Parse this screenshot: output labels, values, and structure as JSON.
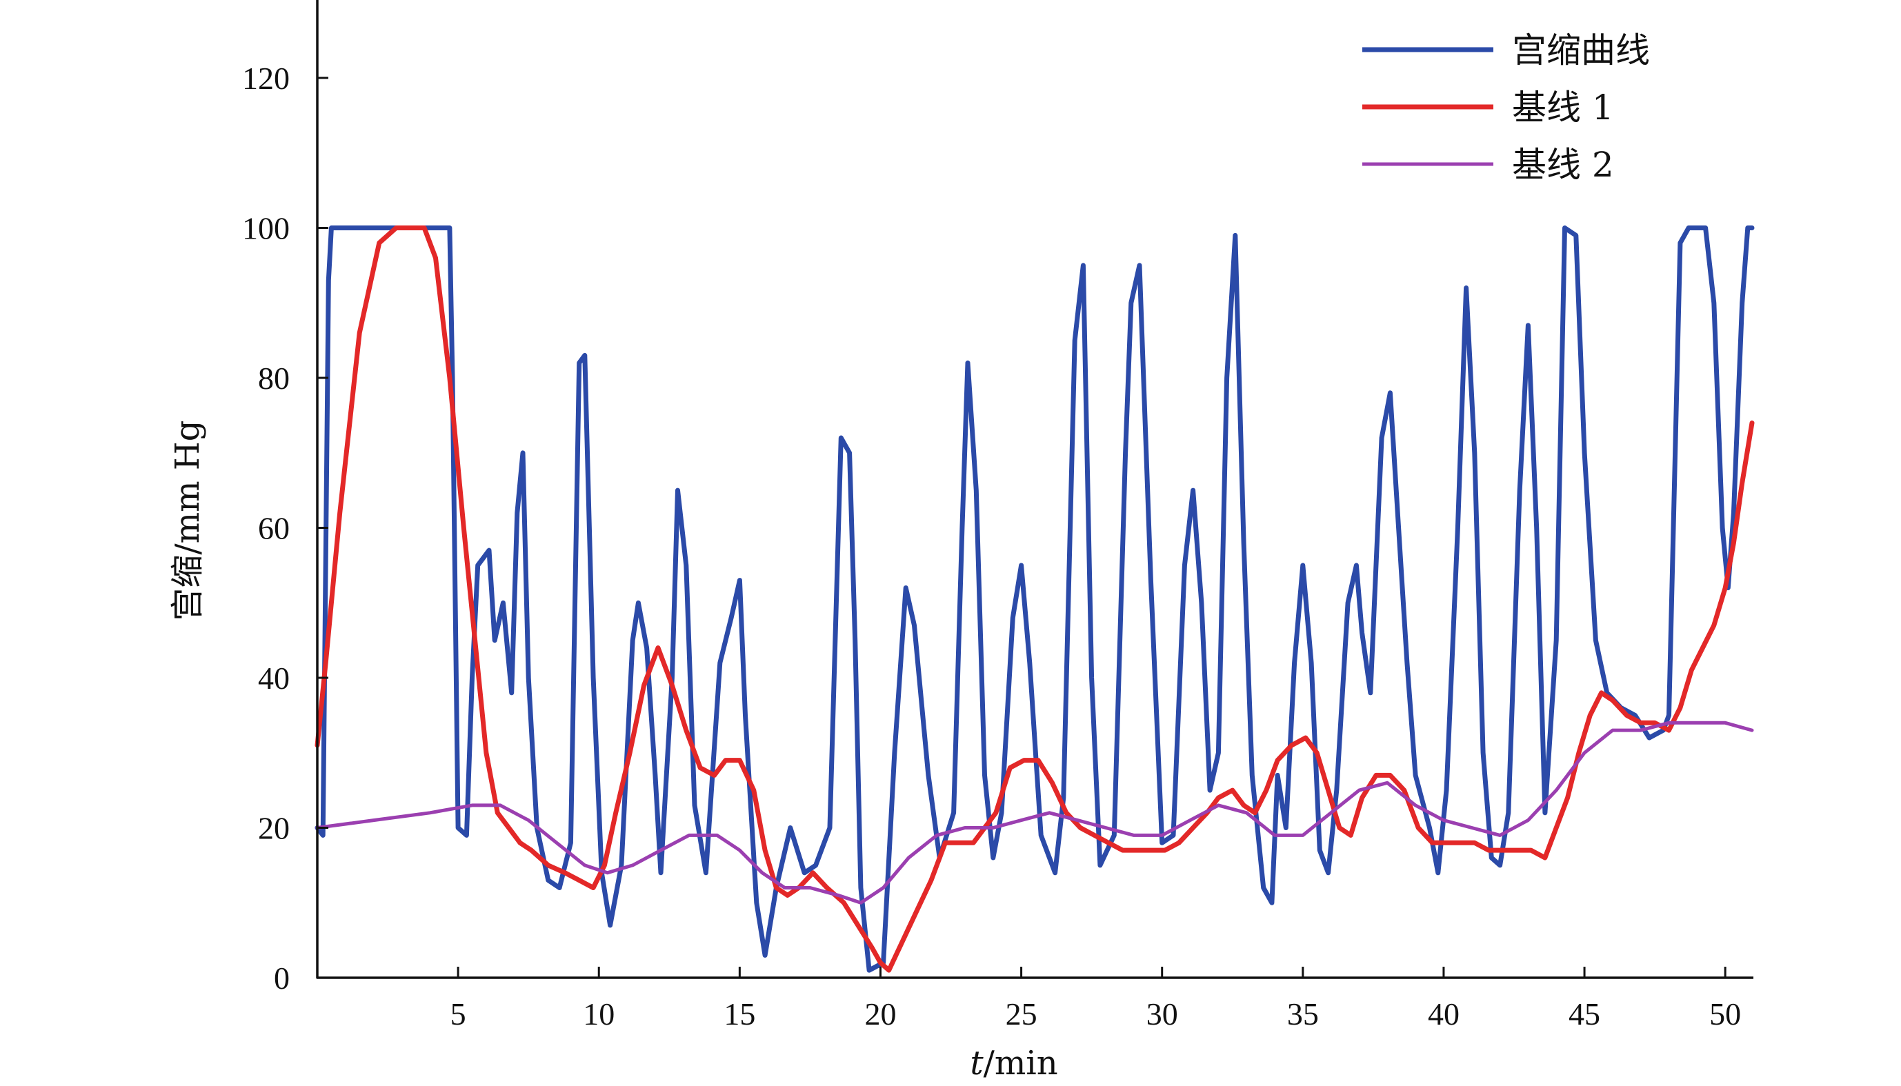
{
  "chart_data": {
    "type": "line",
    "title": "",
    "xlabel_italic": "t",
    "xlabel_unit": "/min",
    "ylabel": "宫缩/mm Hg",
    "xlim": [
      0,
      51
    ],
    "ylim": [
      0,
      130
    ],
    "xticks": [
      5,
      10,
      15,
      20,
      25,
      30,
      35,
      40,
      45,
      50
    ],
    "yticks": [
      0,
      20,
      40,
      60,
      80,
      100,
      120
    ],
    "grid": false,
    "legend_position": "top-right",
    "series": [
      {
        "name": "宫缩曲线",
        "color": "#2b4aa8",
        "points": [
          [
            0,
            20
          ],
          [
            0.2,
            19
          ],
          [
            0.4,
            93
          ],
          [
            0.5,
            100
          ],
          [
            1.5,
            100
          ],
          [
            3,
            100
          ],
          [
            4.6,
            100
          ],
          [
            4.7,
            100
          ],
          [
            4.8,
            80
          ],
          [
            5.0,
            20
          ],
          [
            5.3,
            19
          ],
          [
            5.5,
            40
          ],
          [
            5.7,
            55
          ],
          [
            6.1,
            57
          ],
          [
            6.3,
            45
          ],
          [
            6.6,
            50
          ],
          [
            6.9,
            38
          ],
          [
            7.1,
            62
          ],
          [
            7.3,
            70
          ],
          [
            7.5,
            40
          ],
          [
            7.8,
            20
          ],
          [
            8.2,
            13
          ],
          [
            8.6,
            12
          ],
          [
            9.0,
            18
          ],
          [
            9.3,
            82
          ],
          [
            9.5,
            83
          ],
          [
            9.8,
            40
          ],
          [
            10.1,
            14
          ],
          [
            10.4,
            7
          ],
          [
            10.8,
            15
          ],
          [
            11.2,
            45
          ],
          [
            11.4,
            50
          ],
          [
            11.7,
            44
          ],
          [
            12.0,
            27
          ],
          [
            12.2,
            14
          ],
          [
            12.6,
            40
          ],
          [
            12.8,
            65
          ],
          [
            13.1,
            55
          ],
          [
            13.4,
            23
          ],
          [
            13.8,
            14
          ],
          [
            14.3,
            42
          ],
          [
            14.7,
            48
          ],
          [
            15.0,
            53
          ],
          [
            15.2,
            35
          ],
          [
            15.6,
            10
          ],
          [
            15.9,
            3
          ],
          [
            16.3,
            12
          ],
          [
            16.8,
            20
          ],
          [
            17.3,
            14
          ],
          [
            17.7,
            15
          ],
          [
            18.2,
            20
          ],
          [
            18.6,
            72
          ],
          [
            18.9,
            70
          ],
          [
            19.1,
            45
          ],
          [
            19.3,
            12
          ],
          [
            19.6,
            1
          ],
          [
            20.1,
            2
          ],
          [
            20.5,
            30
          ],
          [
            20.9,
            52
          ],
          [
            21.2,
            47
          ],
          [
            21.7,
            27
          ],
          [
            22.1,
            16
          ],
          [
            22.6,
            22
          ],
          [
            22.9,
            60
          ],
          [
            23.1,
            82
          ],
          [
            23.4,
            65
          ],
          [
            23.7,
            27
          ],
          [
            24.0,
            16
          ],
          [
            24.3,
            22
          ],
          [
            24.7,
            48
          ],
          [
            25.0,
            55
          ],
          [
            25.3,
            42
          ],
          [
            25.7,
            19
          ],
          [
            26.2,
            14
          ],
          [
            26.5,
            24
          ],
          [
            26.9,
            85
          ],
          [
            27.2,
            95
          ],
          [
            27.5,
            40
          ],
          [
            27.8,
            15
          ],
          [
            28.3,
            19
          ],
          [
            28.7,
            70
          ],
          [
            28.9,
            90
          ],
          [
            29.2,
            95
          ],
          [
            29.6,
            53
          ],
          [
            30.0,
            18
          ],
          [
            30.4,
            19
          ],
          [
            30.8,
            55
          ],
          [
            31.1,
            65
          ],
          [
            31.4,
            50
          ],
          [
            31.7,
            25
          ],
          [
            32.0,
            30
          ],
          [
            32.3,
            80
          ],
          [
            32.6,
            99
          ],
          [
            32.9,
            58
          ],
          [
            33.2,
            27
          ],
          [
            33.6,
            12
          ],
          [
            33.9,
            10
          ],
          [
            34.1,
            27
          ],
          [
            34.4,
            20
          ],
          [
            34.7,
            42
          ],
          [
            35.0,
            55
          ],
          [
            35.3,
            42
          ],
          [
            35.6,
            17
          ],
          [
            35.9,
            14
          ],
          [
            36.2,
            25
          ],
          [
            36.6,
            50
          ],
          [
            36.9,
            55
          ],
          [
            37.1,
            46
          ],
          [
            37.4,
            38
          ],
          [
            37.8,
            72
          ],
          [
            38.1,
            78
          ],
          [
            38.4,
            60
          ],
          [
            38.7,
            42
          ],
          [
            39.0,
            27
          ],
          [
            39.5,
            20
          ],
          [
            39.8,
            14
          ],
          [
            40.1,
            25
          ],
          [
            40.5,
            60
          ],
          [
            40.8,
            92
          ],
          [
            41.1,
            70
          ],
          [
            41.4,
            30
          ],
          [
            41.7,
            16
          ],
          [
            42.0,
            15
          ],
          [
            42.3,
            22
          ],
          [
            42.7,
            65
          ],
          [
            43.0,
            87
          ],
          [
            43.3,
            60
          ],
          [
            43.6,
            22
          ],
          [
            44.0,
            45
          ],
          [
            44.3,
            100
          ],
          [
            44.7,
            99
          ],
          [
            45.0,
            70
          ],
          [
            45.4,
            45
          ],
          [
            45.8,
            38
          ],
          [
            46.3,
            36
          ],
          [
            46.8,
            35
          ],
          [
            47.3,
            32
          ],
          [
            47.8,
            33
          ],
          [
            48.0,
            35
          ],
          [
            48.4,
            98
          ],
          [
            48.7,
            100
          ],
          [
            49.3,
            100
          ],
          [
            49.6,
            90
          ],
          [
            49.9,
            60
          ],
          [
            50.1,
            52
          ],
          [
            50.3,
            62
          ],
          [
            50.6,
            90
          ],
          [
            50.8,
            100
          ],
          [
            50.95,
            100
          ]
        ]
      },
      {
        "name": "基线 1",
        "color": "#e32828",
        "points": [
          [
            0,
            31
          ],
          [
            0.3,
            42
          ],
          [
            0.8,
            62
          ],
          [
            1.5,
            86
          ],
          [
            2.2,
            98
          ],
          [
            2.8,
            100
          ],
          [
            3.8,
            100
          ],
          [
            4.2,
            96
          ],
          [
            4.7,
            80
          ],
          [
            5.2,
            60
          ],
          [
            5.6,
            45
          ],
          [
            6.0,
            30
          ],
          [
            6.4,
            22
          ],
          [
            6.8,
            20
          ],
          [
            7.2,
            18
          ],
          [
            7.6,
            17
          ],
          [
            8.2,
            15
          ],
          [
            8.8,
            14
          ],
          [
            9.3,
            13
          ],
          [
            9.8,
            12
          ],
          [
            10.2,
            15
          ],
          [
            10.6,
            22
          ],
          [
            11.1,
            30
          ],
          [
            11.6,
            39
          ],
          [
            12.1,
            44
          ],
          [
            12.6,
            39
          ],
          [
            13.1,
            33
          ],
          [
            13.6,
            28
          ],
          [
            14.1,
            27
          ],
          [
            14.5,
            29
          ],
          [
            15.0,
            29
          ],
          [
            15.5,
            25
          ],
          [
            15.9,
            17
          ],
          [
            16.3,
            12
          ],
          [
            16.7,
            11
          ],
          [
            17.1,
            12
          ],
          [
            17.6,
            14
          ],
          [
            18.1,
            12
          ],
          [
            18.7,
            10
          ],
          [
            19.2,
            7
          ],
          [
            19.7,
            4
          ],
          [
            20.0,
            2
          ],
          [
            20.3,
            1
          ],
          [
            20.8,
            5
          ],
          [
            21.3,
            9
          ],
          [
            21.8,
            13
          ],
          [
            22.3,
            18
          ],
          [
            22.8,
            18
          ],
          [
            23.3,
            18
          ],
          [
            23.7,
            20
          ],
          [
            24.1,
            22
          ],
          [
            24.6,
            28
          ],
          [
            25.1,
            29
          ],
          [
            25.6,
            29
          ],
          [
            26.1,
            26
          ],
          [
            26.6,
            22
          ],
          [
            27.1,
            20
          ],
          [
            27.6,
            19
          ],
          [
            28.1,
            18
          ],
          [
            28.6,
            17
          ],
          [
            29.1,
            17
          ],
          [
            29.6,
            17
          ],
          [
            30.1,
            17
          ],
          [
            30.6,
            18
          ],
          [
            31.1,
            20
          ],
          [
            31.6,
            22
          ],
          [
            32.0,
            24
          ],
          [
            32.5,
            25
          ],
          [
            32.9,
            23
          ],
          [
            33.3,
            22
          ],
          [
            33.7,
            25
          ],
          [
            34.1,
            29
          ],
          [
            34.6,
            31
          ],
          [
            35.1,
            32
          ],
          [
            35.5,
            30
          ],
          [
            35.9,
            25
          ],
          [
            36.3,
            20
          ],
          [
            36.7,
            19
          ],
          [
            37.1,
            24
          ],
          [
            37.6,
            27
          ],
          [
            38.1,
            27
          ],
          [
            38.6,
            25
          ],
          [
            39.1,
            20
          ],
          [
            39.6,
            18
          ],
          [
            40.1,
            18
          ],
          [
            40.6,
            18
          ],
          [
            41.1,
            18
          ],
          [
            41.6,
            17
          ],
          [
            42.1,
            17
          ],
          [
            42.6,
            17
          ],
          [
            43.1,
            17
          ],
          [
            43.6,
            16
          ],
          [
            44.0,
            20
          ],
          [
            44.4,
            24
          ],
          [
            44.8,
            30
          ],
          [
            45.2,
            35
          ],
          [
            45.6,
            38
          ],
          [
            46.0,
            37
          ],
          [
            46.5,
            35
          ],
          [
            47.0,
            34
          ],
          [
            47.5,
            34
          ],
          [
            48.0,
            33
          ],
          [
            48.4,
            36
          ],
          [
            48.8,
            41
          ],
          [
            49.2,
            44
          ],
          [
            49.6,
            47
          ],
          [
            50.0,
            52
          ],
          [
            50.3,
            58
          ],
          [
            50.6,
            66
          ],
          [
            50.95,
            74
          ]
        ]
      },
      {
        "name": "基线 2",
        "color": "#9b3fb0",
        "points": [
          [
            0,
            20
          ],
          [
            2,
            21
          ],
          [
            4,
            22
          ],
          [
            5.5,
            23
          ],
          [
            6.5,
            23
          ],
          [
            7.5,
            21
          ],
          [
            8.5,
            18
          ],
          [
            9.5,
            15
          ],
          [
            10.3,
            14
          ],
          [
            11.2,
            15
          ],
          [
            12.2,
            17
          ],
          [
            13.2,
            19
          ],
          [
            14.2,
            19
          ],
          [
            15.0,
            17
          ],
          [
            15.8,
            14
          ],
          [
            16.6,
            12
          ],
          [
            17.5,
            12
          ],
          [
            18.5,
            11
          ],
          [
            19.3,
            10
          ],
          [
            20.1,
            12
          ],
          [
            21.0,
            16
          ],
          [
            22.0,
            19
          ],
          [
            23.0,
            20
          ],
          [
            24.0,
            20
          ],
          [
            25.0,
            21
          ],
          [
            26.0,
            22
          ],
          [
            27.0,
            21
          ],
          [
            28.0,
            20
          ],
          [
            29.0,
            19
          ],
          [
            30.0,
            19
          ],
          [
            31.0,
            21
          ],
          [
            32.0,
            23
          ],
          [
            33.0,
            22
          ],
          [
            34.0,
            19
          ],
          [
            35.0,
            19
          ],
          [
            36.0,
            22
          ],
          [
            37.0,
            25
          ],
          [
            38.0,
            26
          ],
          [
            39.0,
            23
          ],
          [
            40.0,
            21
          ],
          [
            41.0,
            20
          ],
          [
            42.0,
            19
          ],
          [
            43.0,
            21
          ],
          [
            44.0,
            25
          ],
          [
            45.0,
            30
          ],
          [
            46.0,
            33
          ],
          [
            47.0,
            33
          ],
          [
            48.0,
            34
          ],
          [
            49.0,
            34
          ],
          [
            50.0,
            34
          ],
          [
            50.95,
            33
          ]
        ]
      }
    ]
  }
}
